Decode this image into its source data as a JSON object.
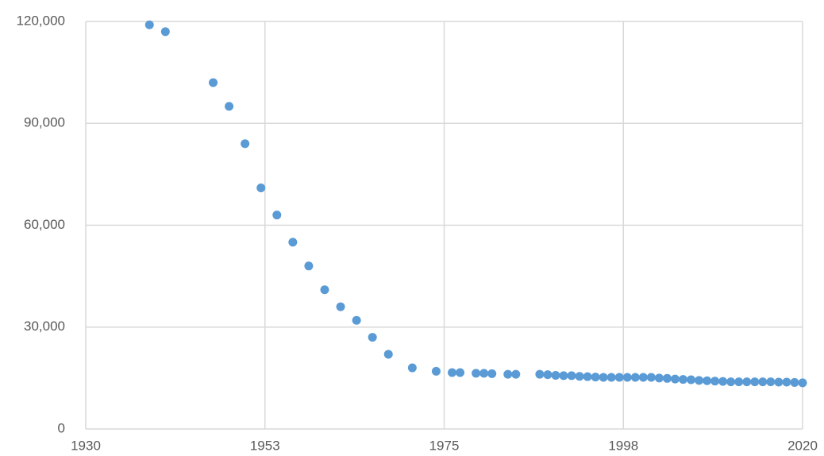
{
  "chart_data": {
    "type": "scatter",
    "x": [
      1938,
      1940,
      1946,
      1948,
      1950,
      1952,
      1954,
      1956,
      1958,
      1960,
      1962,
      1964,
      1966,
      1968,
      1971,
      1974,
      1976,
      1977,
      1979,
      1980,
      1981,
      1983,
      1984,
      1987,
      1988,
      1989,
      1990,
      1991,
      1992,
      1993,
      1994,
      1995,
      1996,
      1997,
      1998,
      1999,
      2000,
      2001,
      2002,
      2003,
      2004,
      2005,
      2006,
      2007,
      2008,
      2009,
      2010,
      2011,
      2012,
      2013,
      2014,
      2015,
      2016,
      2017,
      2018,
      2019,
      2020
    ],
    "series": [
      {
        "color": "#5b9bd5",
        "values": [
          119000,
          117000,
          102000,
          95000,
          84000,
          71000,
          63000,
          55000,
          48000,
          41000,
          36000,
          32000,
          27000,
          22000,
          18000,
          17000,
          16600,
          16600,
          16400,
          16400,
          16300,
          16100,
          16100,
          16100,
          16000,
          15800,
          15700,
          15700,
          15500,
          15400,
          15300,
          15200,
          15200,
          15200,
          15200,
          15200,
          15200,
          15200,
          15000,
          14900,
          14700,
          14600,
          14500,
          14300,
          14200,
          14100,
          14000,
          13900,
          13900,
          13900,
          13900,
          13900,
          13900,
          13800,
          13800,
          13700,
          13600
        ]
      }
    ],
    "xlim": [
      1930,
      2020
    ],
    "xticks": [
      1930,
      {
        "value": 1952.5,
        "label": "1953"
      },
      1975,
      {
        "value": 1997.5,
        "label": "1998"
      },
      2020
    ],
    "ylim": [
      0,
      120000
    ],
    "yticks": [
      0,
      {
        "value": 30000,
        "label": "30,000"
      },
      {
        "value": 60000,
        "label": "60,000"
      },
      {
        "value": 90000,
        "label": "90,000"
      },
      {
        "value": 120000,
        "label": "120,000"
      }
    ],
    "grid": true
  }
}
